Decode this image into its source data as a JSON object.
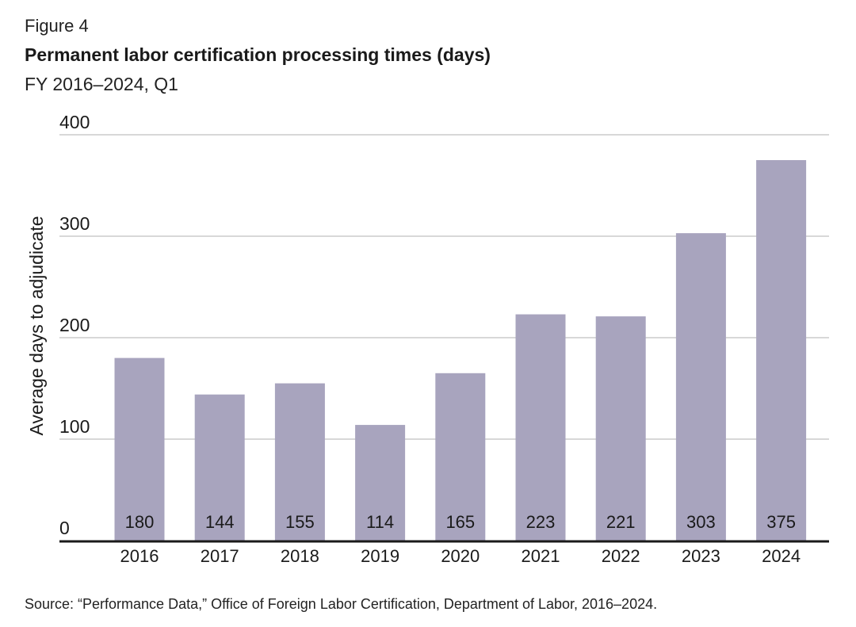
{
  "figure": {
    "label": "Figure 4",
    "title": "Permanent labor certification processing times (days)",
    "subtitle": "FY 2016–2024, Q1",
    "source": "Source: “Performance Data,” Office of Foreign Labor Certification, Department of Labor, 2016–2024."
  },
  "colors": {
    "bar": "#a8a4be",
    "grid": "#cccccc",
    "axis": "#1a1a1a",
    "text": "#1a1a1a"
  },
  "chart_data": {
    "type": "bar",
    "title": "Permanent labor certification processing times (days)",
    "subtitle": "FY 2016–2024, Q1",
    "xlabel": "",
    "ylabel": "Average days to adjudicate",
    "ylim": [
      0,
      400
    ],
    "yticks": [
      0,
      100,
      200,
      300,
      400
    ],
    "grid": true,
    "categories": [
      "2016",
      "2017",
      "2018",
      "2019",
      "2020",
      "2021",
      "2022",
      "2023",
      "2024"
    ],
    "values": [
      180,
      144,
      155,
      114,
      165,
      223,
      221,
      303,
      375
    ],
    "data_labels": [
      "180",
      "144",
      "155",
      "114",
      "165",
      "223",
      "221",
      "303",
      "375"
    ]
  }
}
